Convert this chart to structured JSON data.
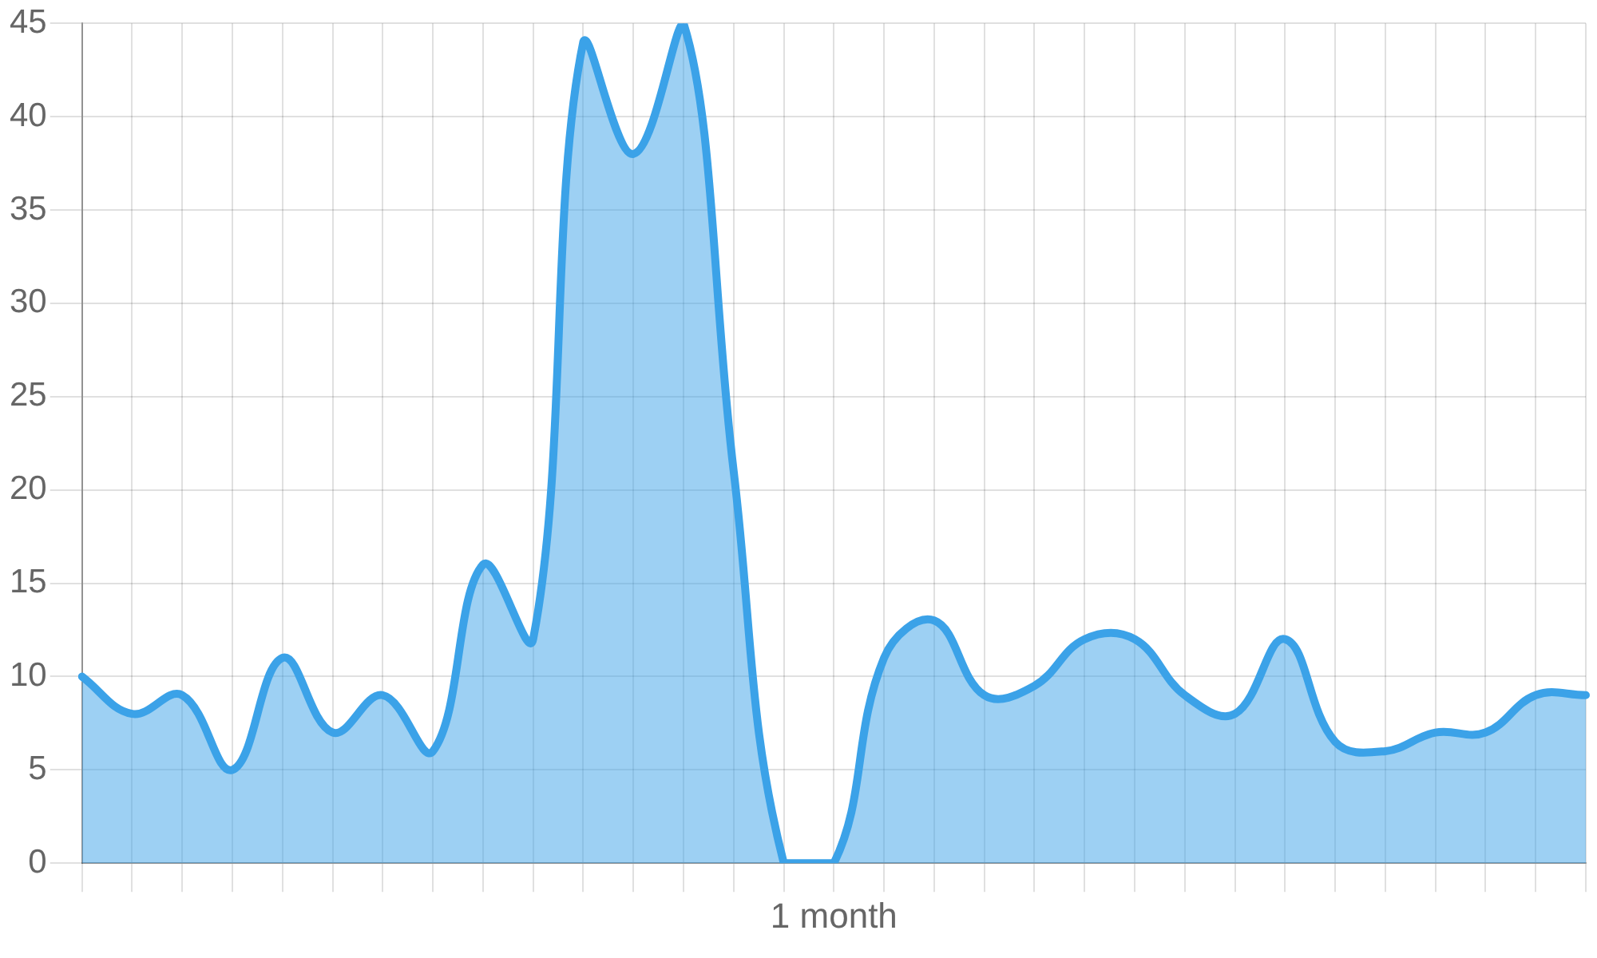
{
  "chart_data": {
    "type": "area",
    "xlabel": "1 month",
    "categories": [
      null,
      null,
      null,
      null,
      null,
      null,
      null,
      null,
      null,
      null,
      null,
      null,
      null,
      null,
      null,
      null,
      null,
      null,
      null,
      null,
      null,
      null,
      null,
      null,
      null,
      null,
      null,
      null,
      null,
      null,
      null
    ],
    "values": [
      10,
      8,
      9,
      5,
      11,
      7,
      9,
      6,
      16,
      12,
      44,
      38,
      45,
      21,
      0,
      0,
      11,
      13,
      9,
      9.5,
      12,
      12,
      9,
      8,
      12,
      6.5,
      6,
      7,
      7,
      9,
      9
    ],
    "color": "#3ba2e8",
    "ylim": [
      0,
      45
    ],
    "yticks": [
      0,
      5,
      10,
      15,
      20,
      25,
      30,
      35,
      40,
      45
    ],
    "grid": true,
    "legend": false,
    "marker": "none"
  }
}
